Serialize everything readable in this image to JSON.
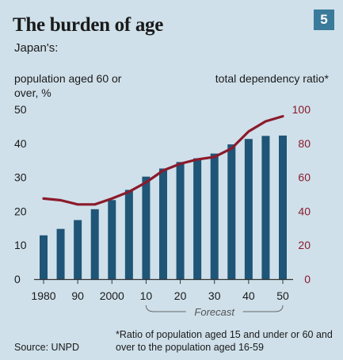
{
  "header": {
    "title": "The burden of age",
    "badge": "5",
    "subtitle": "Japan's:"
  },
  "axes": {
    "left_label": "population aged 60 or over, %",
    "right_label": "total dependency ratio*",
    "forecast_label": "Forecast"
  },
  "footer": {
    "footnote": "*Ratio of population aged 15 and under or 60 and over to the population aged 16-59",
    "source": "Source: UNPD"
  },
  "colors": {
    "background": "#cfe0ea",
    "bars": "#1f5577",
    "line": "#8b1a2b",
    "axis_right": "#8b1a2b",
    "text": "#1a1a1a"
  },
  "chart_data": {
    "type": "bar",
    "title": "The burden of age",
    "subtitle": "Japan's:",
    "x": [
      1980,
      1985,
      1990,
      1995,
      2000,
      2005,
      2010,
      2015,
      2020,
      2025,
      2030,
      2035,
      2040,
      2045,
      2050
    ],
    "x_tick_labels": [
      "1980",
      "90",
      "2000",
      "10",
      "20",
      "30",
      "40",
      "50"
    ],
    "x_tick_values": [
      1980,
      1990,
      2000,
      2010,
      2020,
      2030,
      2040,
      2050
    ],
    "series": [
      {
        "name": "population aged 60 or over, %",
        "type": "bar",
        "axis": "left",
        "values": [
          12.9,
          14.8,
          17.4,
          20.6,
          23.3,
          26.3,
          30.2,
          32.6,
          34.5,
          35.6,
          37.0,
          39.7,
          41.3,
          42.2,
          42.3
        ]
      },
      {
        "name": "total dependency ratio*",
        "type": "line",
        "axis": "right",
        "values": [
          47.5,
          46.5,
          44.0,
          44.0,
          47.5,
          51.5,
          57.0,
          64.0,
          68.0,
          70.5,
          72.0,
          77.0,
          87.0,
          93.0,
          96.0
        ]
      }
    ],
    "ylim_left": [
      0,
      50
    ],
    "yticks_left": [
      0,
      10,
      20,
      30,
      40,
      50
    ],
    "ylim_right": [
      0,
      100
    ],
    "yticks_right": [
      0,
      20,
      40,
      60,
      80,
      100
    ],
    "forecast_range": [
      2010,
      2050
    ],
    "grid": false
  }
}
